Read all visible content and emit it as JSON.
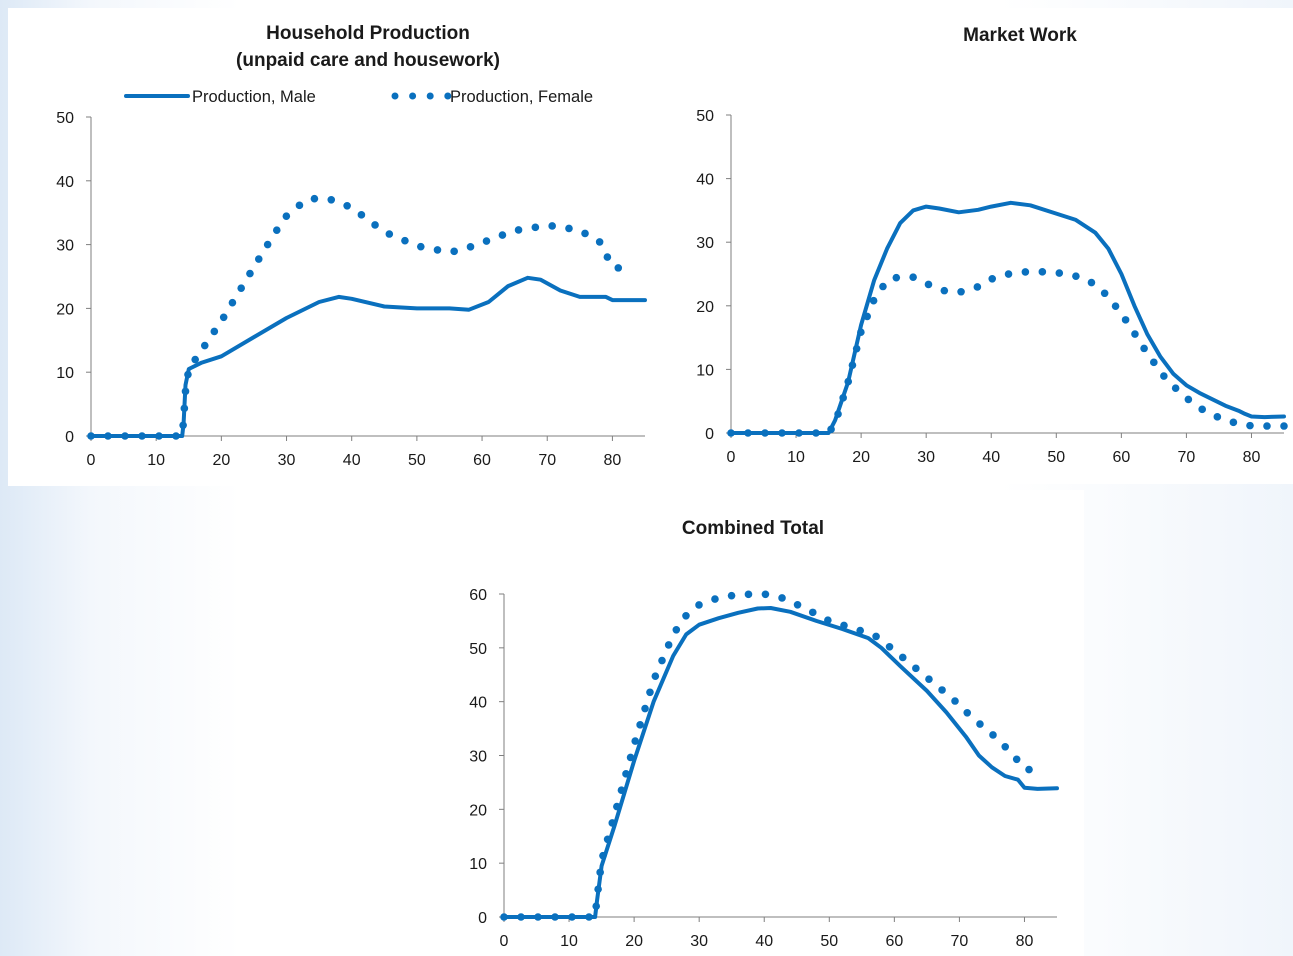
{
  "colors": {
    "series": "#0a70be",
    "axis": "#7f7f7f",
    "text": "#1a1a1a"
  },
  "legend": {
    "male_label": "Production, Male",
    "female_label": "Production, Female"
  },
  "chart_data": [
    {
      "type": "line",
      "title": "Household Production",
      "subtitle": "(unpaid care and housework)",
      "xlim": [
        0,
        85
      ],
      "ylim": [
        0,
        50
      ],
      "xticks": [
        0,
        10,
        20,
        30,
        40,
        50,
        60,
        70,
        80
      ],
      "yticks": [
        0,
        10,
        20,
        30,
        40,
        50
      ],
      "legend_position": "top",
      "series": [
        {
          "name": "Production, Male",
          "style": "solid",
          "points": [
            [
              0,
              0
            ],
            [
              14,
              0
            ],
            [
              14.2,
              2
            ],
            [
              14.5,
              8
            ],
            [
              15,
              10.5
            ],
            [
              17,
              11.5
            ],
            [
              20,
              12.5
            ],
            [
              25,
              15.5
            ],
            [
              30,
              18.5
            ],
            [
              35,
              21
            ],
            [
              38,
              21.8
            ],
            [
              40,
              21.5
            ],
            [
              45,
              20.3
            ],
            [
              50,
              20
            ],
            [
              55,
              20
            ],
            [
              58,
              19.8
            ],
            [
              61,
              21
            ],
            [
              64,
              23.5
            ],
            [
              67,
              24.8
            ],
            [
              69,
              24.5
            ],
            [
              72,
              22.8
            ],
            [
              75,
              21.8
            ],
            [
              78,
              21.8
            ],
            [
              79,
              21.8
            ],
            [
              80,
              21.3
            ],
            [
              85,
              21.3
            ]
          ]
        },
        {
          "name": "Production, Female",
          "style": "dotted",
          "points": [
            [
              0,
              0
            ],
            [
              14,
              0
            ],
            [
              14.2,
              2.5
            ],
            [
              14.5,
              7
            ],
            [
              15,
              10.5
            ],
            [
              17,
              13.5
            ],
            [
              20,
              18
            ],
            [
              25,
              26.5
            ],
            [
              28,
              31.5
            ],
            [
              30,
              34.5
            ],
            [
              33,
              37
            ],
            [
              35,
              37.3
            ],
            [
              37,
              37
            ],
            [
              40,
              35.8
            ],
            [
              45,
              32
            ],
            [
              50,
              29.8
            ],
            [
              55,
              28.8
            ],
            [
              57,
              29.2
            ],
            [
              60,
              30.3
            ],
            [
              65,
              32.2
            ],
            [
              70,
              33
            ],
            [
              72,
              32.8
            ],
            [
              75,
              32.2
            ],
            [
              78,
              30.5
            ],
            [
              80,
              26.5
            ],
            [
              83,
              26
            ]
          ]
        }
      ]
    },
    {
      "type": "line",
      "title": "Market Work",
      "xlim": [
        0,
        85
      ],
      "ylim": [
        0,
        50
      ],
      "xticks": [
        0,
        10,
        20,
        30,
        40,
        50,
        60,
        70,
        80
      ],
      "yticks": [
        0,
        10,
        20,
        30,
        40,
        50
      ],
      "series": [
        {
          "style": "solid",
          "points": [
            [
              0,
              0
            ],
            [
              15,
              0
            ],
            [
              16,
              2
            ],
            [
              18,
              8
            ],
            [
              20,
              17
            ],
            [
              22,
              24
            ],
            [
              24,
              29
            ],
            [
              26,
              33
            ],
            [
              28,
              35
            ],
            [
              30,
              35.6
            ],
            [
              32,
              35.3
            ],
            [
              35,
              34.7
            ],
            [
              38,
              35.1
            ],
            [
              40,
              35.6
            ],
            [
              43,
              36.2
            ],
            [
              46,
              35.8
            ],
            [
              50,
              34.5
            ],
            [
              53,
              33.5
            ],
            [
              56,
              31.5
            ],
            [
              58,
              29
            ],
            [
              60,
              25
            ],
            [
              62,
              20
            ],
            [
              64,
              15.5
            ],
            [
              66,
              12
            ],
            [
              68,
              9.3
            ],
            [
              70,
              7.5
            ],
            [
              72,
              6.3
            ],
            [
              74,
              5.3
            ],
            [
              76,
              4.3
            ],
            [
              78,
              3.5
            ],
            [
              79,
              3
            ],
            [
              80,
              2.6
            ],
            [
              82,
              2.5
            ],
            [
              85,
              2.6
            ]
          ]
        },
        {
          "style": "dotted",
          "points": [
            [
              0,
              0
            ],
            [
              15,
              0
            ],
            [
              16,
              1.5
            ],
            [
              18,
              8
            ],
            [
              20,
              16
            ],
            [
              22,
              21
            ],
            [
              24,
              24
            ],
            [
              26,
              24.6
            ],
            [
              28,
              24.5
            ],
            [
              30,
              23.5
            ],
            [
              33,
              22.3
            ],
            [
              35,
              22.1
            ],
            [
              38,
              23
            ],
            [
              40,
              24.2
            ],
            [
              43,
              25.1
            ],
            [
              46,
              25.4
            ],
            [
              49,
              25.3
            ],
            [
              52,
              25
            ],
            [
              55,
              24
            ],
            [
              58,
              21.5
            ],
            [
              61,
              17.3
            ],
            [
              64,
              12.5
            ],
            [
              67,
              8.3
            ],
            [
              70,
              5.5
            ],
            [
              73,
              3.3
            ],
            [
              76,
              2
            ],
            [
              79,
              1.2
            ],
            [
              81,
              1.1
            ],
            [
              85,
              1.1
            ]
          ]
        }
      ]
    },
    {
      "type": "line",
      "title": "Combined Total",
      "xlim": [
        0,
        85
      ],
      "ylim": [
        0,
        60
      ],
      "xticks": [
        0,
        10,
        20,
        30,
        40,
        50,
        60,
        70,
        80
      ],
      "yticks": [
        0,
        10,
        20,
        30,
        40,
        50,
        60
      ],
      "series": [
        {
          "style": "solid",
          "points": [
            [
              0,
              0
            ],
            [
              14,
              0
            ],
            [
              14.3,
              3
            ],
            [
              15,
              9.5
            ],
            [
              17,
              17
            ],
            [
              20,
              29
            ],
            [
              23,
              40
            ],
            [
              26,
              48.5
            ],
            [
              28,
              52.5
            ],
            [
              30,
              54.3
            ],
            [
              33,
              55.5
            ],
            [
              36,
              56.5
            ],
            [
              39,
              57.3
            ],
            [
              41,
              57.4
            ],
            [
              44,
              56.7
            ],
            [
              48,
              55
            ],
            [
              52,
              53.5
            ],
            [
              56,
              51.8
            ],
            [
              58,
              50
            ],
            [
              61,
              46.5
            ],
            [
              65,
              42
            ],
            [
              68,
              38
            ],
            [
              71,
              33.5
            ],
            [
              73,
              30
            ],
            [
              75,
              27.8
            ],
            [
              77,
              26.2
            ],
            [
              79,
              25.5
            ],
            [
              80,
              24
            ],
            [
              82,
              23.8
            ],
            [
              85,
              23.9
            ]
          ]
        },
        {
          "style": "dotted",
          "points": [
            [
              0,
              0
            ],
            [
              14,
              0
            ],
            [
              14.3,
              3.5
            ],
            [
              15,
              10.5
            ],
            [
              17,
              19
            ],
            [
              20,
              32
            ],
            [
              23,
              44
            ],
            [
              26,
              52.5
            ],
            [
              28,
              56
            ],
            [
              30,
              58
            ],
            [
              33,
              59.3
            ],
            [
              36,
              59.9
            ],
            [
              40,
              60
            ],
            [
              43,
              59.2
            ],
            [
              46,
              57.5
            ],
            [
              50,
              55
            ],
            [
              54,
              53.5
            ],
            [
              57,
              52.3
            ],
            [
              60,
              49.5
            ],
            [
              63,
              46.5
            ],
            [
              66,
              43.5
            ],
            [
              69,
              40.5
            ],
            [
              72,
              37
            ],
            [
              75,
              34
            ],
            [
              78,
              30.5
            ],
            [
              80,
              27.5
            ],
            [
              83,
              27
            ]
          ]
        }
      ]
    }
  ]
}
